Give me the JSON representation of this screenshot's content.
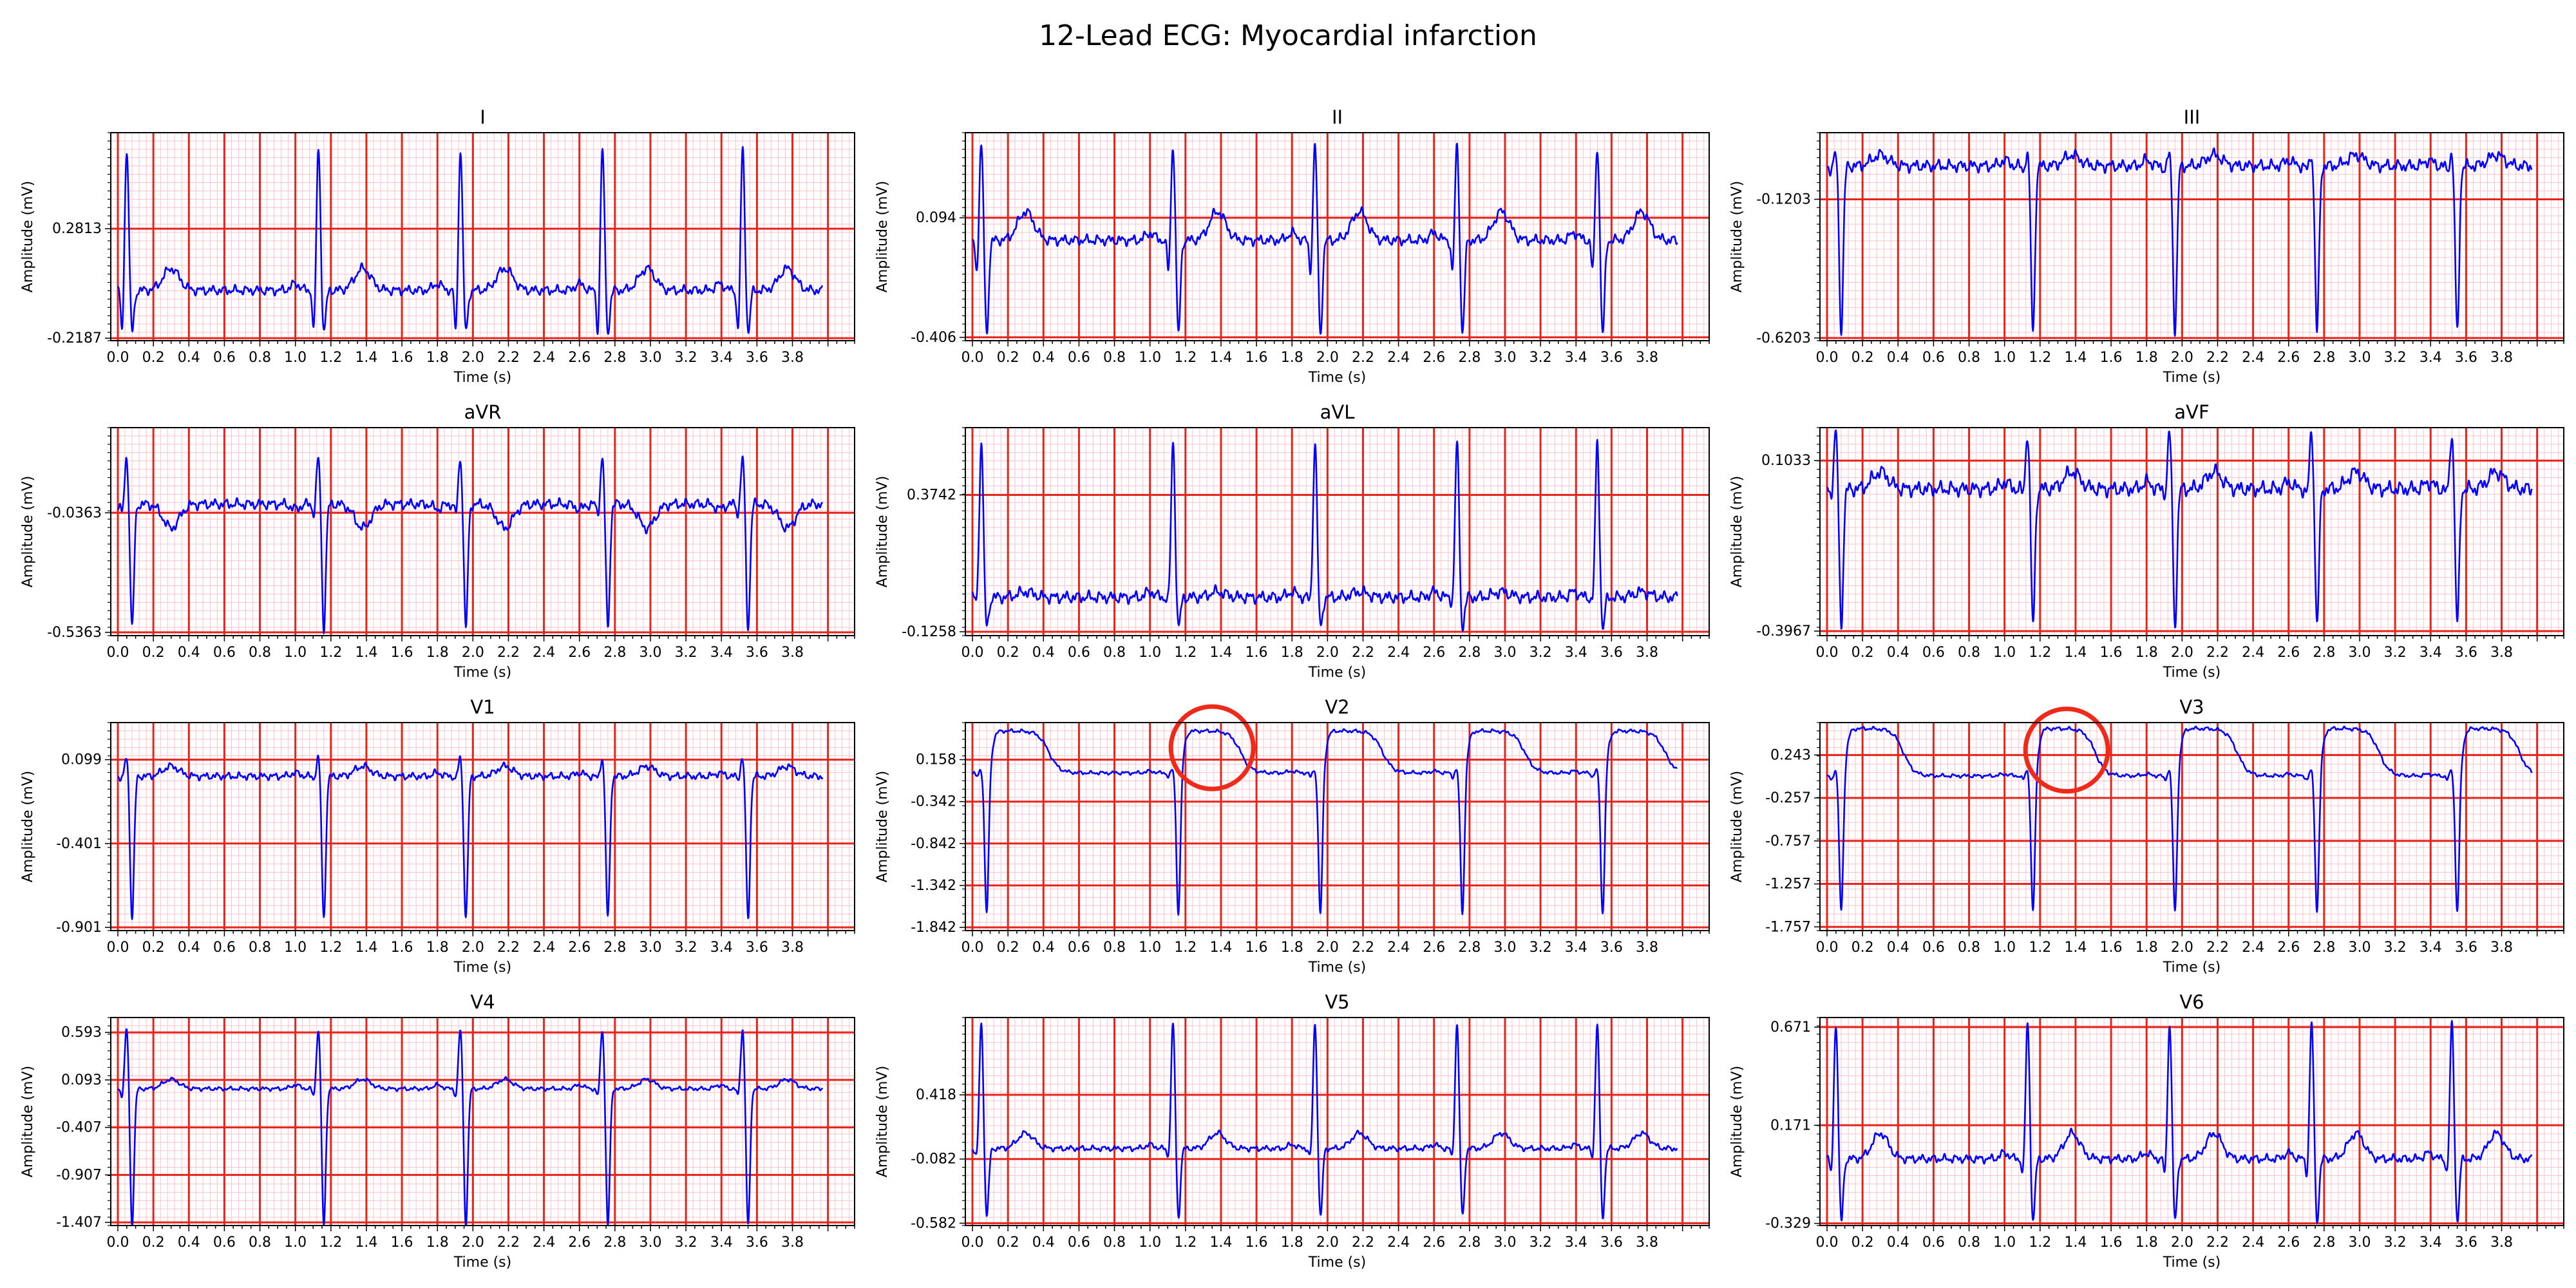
{
  "title": "12-Lead ECG: Myocardial infarction",
  "colors": {
    "trace": "#0000ff",
    "major_grid": "#e8231a",
    "minor_grid": "#ffc0cb",
    "annotation": "#ee2a1a",
    "background": "#ffffff"
  },
  "chart_data": [
    {
      "type": "line",
      "title": "I",
      "xlabel": "Time (s)",
      "ylabel": "Amplitude (mV)",
      "ylim": [
        -0.23,
        0.72
      ],
      "yticks": [
        "0.2813",
        "-0.2187"
      ],
      "xticks": [
        "0.0",
        "0.2",
        "0.4",
        "0.6",
        "0.8",
        "1.0",
        "1.2",
        "1.4",
        "1.6",
        "1.8",
        "2.0",
        "2.2",
        "2.4",
        "2.6",
        "2.8",
        "3.0",
        "3.2",
        "3.4",
        "3.6",
        "3.8"
      ],
      "xlim": [
        -0.04,
        4.15
      ],
      "beats": [
        0.05,
        1.13,
        1.93,
        2.73,
        3.52
      ],
      "template": "normal",
      "baseline": 0.0,
      "r_amp": 0.65,
      "q_depth": 0.22,
      "s_depth": 0.2,
      "t_amp": 0.1,
      "p_amp": 0.03
    },
    {
      "type": "line",
      "title": "II",
      "xlabel": "Time (s)",
      "ylabel": "Amplitude (mV)",
      "ylim": [
        -0.42,
        0.45
      ],
      "yticks": [
        "0.094",
        "-0.406"
      ],
      "xticks": [
        "0.0",
        "0.2",
        "0.4",
        "0.6",
        "0.8",
        "1.0",
        "1.2",
        "1.4",
        "1.6",
        "1.8",
        "2.0",
        "2.2",
        "2.4",
        "2.6",
        "2.8",
        "3.0",
        "3.2",
        "3.4",
        "3.6",
        "3.8"
      ],
      "xlim": [
        -0.04,
        4.15
      ],
      "beats": [
        0.05,
        1.13,
        1.93,
        2.73,
        3.52
      ],
      "template": "normal",
      "baseline": 0.0,
      "r_amp": 0.4,
      "q_depth": 0.15,
      "s_depth": 0.4,
      "t_amp": 0.12,
      "p_amp": 0.03
    },
    {
      "type": "line",
      "title": "III",
      "xlabel": "Time (s)",
      "ylabel": "Amplitude (mV)",
      "ylim": [
        -0.63,
        0.12
      ],
      "yticks": [
        "-0.1203",
        "-0.6203"
      ],
      "xticks": [
        "0.0",
        "0.2",
        "0.4",
        "0.6",
        "0.8",
        "1.0",
        "1.2",
        "1.4",
        "1.6",
        "1.8",
        "2.0",
        "2.2",
        "2.4",
        "2.6",
        "2.8",
        "3.0",
        "3.2",
        "3.4",
        "3.6",
        "3.8"
      ],
      "xlim": [
        -0.04,
        4.15
      ],
      "beats": [
        0.05,
        1.13,
        1.93,
        2.73,
        3.52
      ],
      "template": "normal",
      "baseline": 0.0,
      "r_amp": 0.05,
      "q_depth": 0.02,
      "s_depth": 0.6,
      "t_amp": 0.04,
      "p_amp": 0.02
    },
    {
      "type": "line",
      "title": "aVR",
      "xlabel": "Time (s)",
      "ylabel": "Amplitude (mV)",
      "ylim": [
        -0.55,
        0.32
      ],
      "yticks": [
        "-0.0363",
        "-0.5363"
      ],
      "xticks": [
        "0.0",
        "0.2",
        "0.4",
        "0.6",
        "0.8",
        "1.0",
        "1.2",
        "1.4",
        "1.6",
        "1.8",
        "2.0",
        "2.2",
        "2.4",
        "2.6",
        "2.8",
        "3.0",
        "3.2",
        "3.4",
        "3.6",
        "3.8"
      ],
      "xlim": [
        -0.04,
        4.15
      ],
      "beats": [
        0.05,
        1.13,
        1.93,
        2.73,
        3.52
      ],
      "template": "inverted",
      "baseline": 0.0,
      "r_amp": 0.2,
      "q_depth": 0.05,
      "s_depth": 0.52,
      "t_amp": -0.1,
      "p_amp": -0.02
    },
    {
      "type": "line",
      "title": "aVL",
      "xlabel": "Time (s)",
      "ylabel": "Amplitude (mV)",
      "ylim": [
        -0.14,
        0.62
      ],
      "yticks": [
        "0.3742",
        "-0.1258"
      ],
      "xticks": [
        "0.0",
        "0.2",
        "0.4",
        "0.6",
        "0.8",
        "1.0",
        "1.2",
        "1.4",
        "1.6",
        "1.8",
        "2.0",
        "2.2",
        "2.4",
        "2.6",
        "2.8",
        "3.0",
        "3.2",
        "3.4",
        "3.6",
        "3.8"
      ],
      "xlim": [
        -0.04,
        4.15
      ],
      "beats": [
        0.05,
        1.13,
        1.93,
        2.73,
        3.52
      ],
      "template": "normal",
      "baseline": 0.0,
      "r_amp": 0.57,
      "q_depth": 0.03,
      "s_depth": 0.12,
      "t_amp": 0.02,
      "p_amp": 0.02
    },
    {
      "type": "line",
      "title": "aVF",
      "xlabel": "Time (s)",
      "ylabel": "Amplitude (mV)",
      "ylim": [
        -0.41,
        0.2
      ],
      "yticks": [
        "0.1033",
        "-0.3967"
      ],
      "xticks": [
        "0.0",
        "0.2",
        "0.4",
        "0.6",
        "0.8",
        "1.0",
        "1.2",
        "1.4",
        "1.6",
        "1.8",
        "2.0",
        "2.2",
        "2.4",
        "2.6",
        "2.8",
        "3.0",
        "3.2",
        "3.4",
        "3.6",
        "3.8"
      ],
      "xlim": [
        -0.04,
        4.15
      ],
      "beats": [
        0.05,
        1.13,
        1.93,
        2.73,
        3.52
      ],
      "template": "normal",
      "baseline": 0.02,
      "r_amp": 0.17,
      "q_depth": 0.02,
      "s_depth": 0.4,
      "t_amp": 0.05,
      "p_amp": 0.02
    },
    {
      "type": "line",
      "title": "V1",
      "xlabel": "Time (s)",
      "ylabel": "Amplitude (mV)",
      "ylim": [
        -0.92,
        0.32
      ],
      "yticks": [
        "0.099",
        "-0.401",
        "-0.901"
      ],
      "xticks": [
        "0.0",
        "0.2",
        "0.4",
        "0.6",
        "0.8",
        "1.0",
        "1.2",
        "1.4",
        "1.6",
        "1.8",
        "2.0",
        "2.2",
        "2.4",
        "2.6",
        "2.8",
        "3.0",
        "3.2",
        "3.4",
        "3.6",
        "3.8"
      ],
      "xlim": [
        -0.04,
        4.15
      ],
      "beats": [
        0.05,
        1.13,
        1.93,
        2.73,
        3.52
      ],
      "template": "deepS",
      "baseline": 0.0,
      "r_amp": 0.12,
      "q_depth": 0.02,
      "s_depth": 0.85,
      "t_amp": 0.06,
      "p_amp": 0.02
    },
    {
      "type": "line",
      "title": "V2",
      "xlabel": "Time (s)",
      "ylabel": "Amplitude (mV)",
      "ylim": [
        -1.88,
        0.6
      ],
      "yticks": [
        "0.158",
        "-0.342",
        "-0.842",
        "-1.342",
        "-1.842"
      ],
      "xticks": [
        "0.0",
        "0.2",
        "0.4",
        "0.6",
        "0.8",
        "1.0",
        "1.2",
        "1.4",
        "1.6",
        "1.8",
        "2.0",
        "2.2",
        "2.4",
        "2.6",
        "2.8",
        "3.0",
        "3.2",
        "3.4",
        "3.6",
        "3.8"
      ],
      "xlim": [
        -0.04,
        4.15
      ],
      "beats": [
        0.05,
        1.13,
        1.93,
        2.73,
        3.52
      ],
      "template": "stElevation",
      "baseline": 0.0,
      "r_amp": 0.05,
      "q_depth": 0.05,
      "s_depth": 1.7,
      "t_amp": 0.5,
      "p_amp": 0.02,
      "annotation": {
        "shape": "circle",
        "x": 1.35,
        "y": 0.3
      }
    },
    {
      "type": "line",
      "title": "V3",
      "xlabel": "Time (s)",
      "ylabel": "Amplitude (mV)",
      "ylim": [
        -1.8,
        0.62
      ],
      "yticks": [
        "0.243",
        "-0.257",
        "-0.757",
        "-1.257",
        "-1.757"
      ],
      "xticks": [
        "0.0",
        "0.2",
        "0.4",
        "0.6",
        "0.8",
        "1.0",
        "1.2",
        "1.4",
        "1.6",
        "1.8",
        "2.0",
        "2.2",
        "2.4",
        "2.6",
        "2.8",
        "3.0",
        "3.2",
        "3.4",
        "3.6",
        "3.8"
      ],
      "xlim": [
        -0.04,
        4.15
      ],
      "beats": [
        0.05,
        1.13,
        1.93,
        2.73,
        3.52
      ],
      "template": "stElevation",
      "baseline": 0.0,
      "r_amp": 0.08,
      "q_depth": 0.05,
      "s_depth": 1.6,
      "t_amp": 0.55,
      "p_amp": 0.02,
      "annotation": {
        "shape": "circle",
        "x": 1.35,
        "y": 0.3
      }
    },
    {
      "type": "line",
      "title": "V4",
      "xlabel": "Time (s)",
      "ylabel": "Amplitude (mV)",
      "ylim": [
        -1.44,
        0.75
      ],
      "yticks": [
        "0.593",
        "0.093",
        "-0.407",
        "-0.907",
        "-1.407"
      ],
      "xticks": [
        "0.0",
        "0.2",
        "0.4",
        "0.6",
        "0.8",
        "1.0",
        "1.2",
        "1.4",
        "1.6",
        "1.8",
        "2.0",
        "2.2",
        "2.4",
        "2.6",
        "2.8",
        "3.0",
        "3.2",
        "3.4",
        "3.6",
        "3.8"
      ],
      "xlim": [
        -0.04,
        4.15
      ],
      "beats": [
        0.05,
        1.13,
        1.93,
        2.73,
        3.52
      ],
      "template": "normal",
      "baseline": 0.0,
      "r_amp": 0.65,
      "q_depth": 0.1,
      "s_depth": 1.45,
      "t_amp": 0.1,
      "p_amp": 0.04
    },
    {
      "type": "line",
      "title": "V5",
      "xlabel": "Time (s)",
      "ylabel": "Amplitude (mV)",
      "ylim": [
        -0.6,
        1.02
      ],
      "yticks": [
        "0.418",
        "-0.082",
        "-0.582"
      ],
      "xticks": [
        "0.0",
        "0.2",
        "0.4",
        "0.6",
        "0.8",
        "1.0",
        "1.2",
        "1.4",
        "1.6",
        "1.8",
        "2.0",
        "2.2",
        "2.4",
        "2.6",
        "2.8",
        "3.0",
        "3.2",
        "3.4",
        "3.6",
        "3.8"
      ],
      "xlim": [
        -0.04,
        4.15
      ],
      "beats": [
        0.05,
        1.13,
        1.93,
        2.73,
        3.52
      ],
      "template": "normal",
      "baseline": 0.0,
      "r_amp": 0.98,
      "q_depth": 0.1,
      "s_depth": 0.55,
      "t_amp": 0.12,
      "p_amp": 0.03
    },
    {
      "type": "line",
      "title": "V6",
      "xlabel": "Time (s)",
      "ylabel": "Amplitude (mV)",
      "ylim": [
        -0.34,
        0.72
      ],
      "yticks": [
        "0.671",
        "0.171",
        "-0.329"
      ],
      "xticks": [
        "0.0",
        "0.2",
        "0.4",
        "0.6",
        "0.8",
        "1.0",
        "1.2",
        "1.4",
        "1.6",
        "1.8",
        "2.0",
        "2.2",
        "2.4",
        "2.6",
        "2.8",
        "3.0",
        "3.2",
        "3.4",
        "3.6",
        "3.8"
      ],
      "xlim": [
        -0.04,
        4.15
      ],
      "beats": [
        0.05,
        1.13,
        1.93,
        2.73,
        3.52
      ],
      "template": "normal",
      "baseline": 0.0,
      "r_amp": 0.7,
      "q_depth": 0.1,
      "s_depth": 0.33,
      "t_amp": 0.13,
      "p_amp": 0.03
    }
  ]
}
